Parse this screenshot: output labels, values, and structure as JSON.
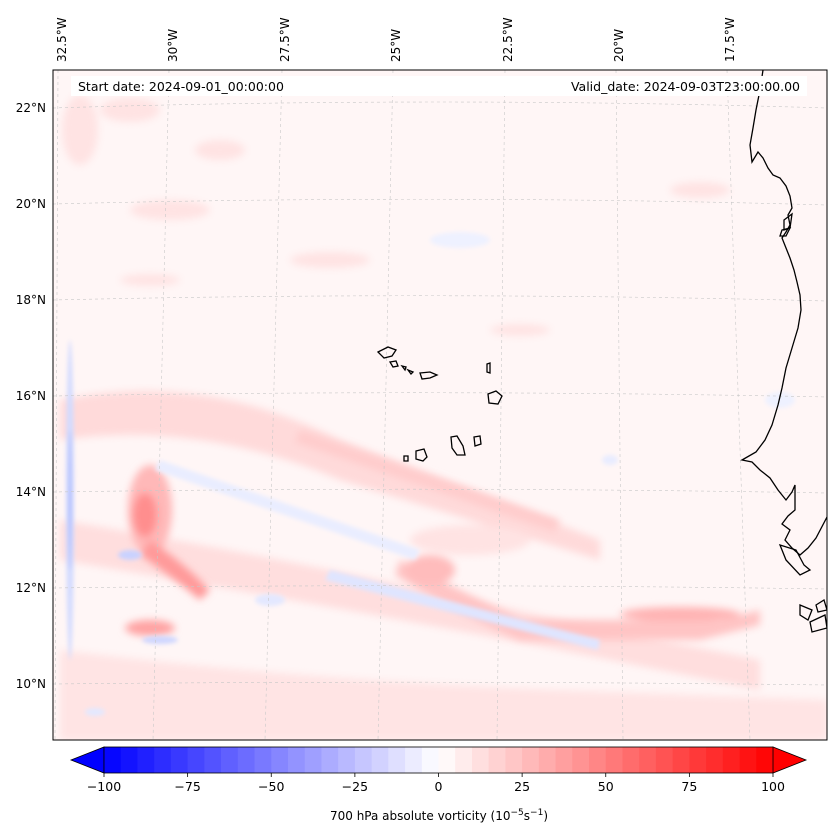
{
  "map": {
    "header": {
      "start_date": "Start date: 2024-09-01_00:00:00",
      "valid_date": "Valid_date: 2024-09-03T23:00:00.00"
    },
    "longitude_labels": [
      "32.5°W",
      "30°W",
      "27.5°W",
      "25°W",
      "22.5°W",
      "20°W",
      "17.5°W"
    ],
    "latitude_labels": [
      "22°N",
      "20°N",
      "18°N",
      "16°N",
      "14°N",
      "12°N",
      "10°N"
    ],
    "region": "Eastern tropical Atlantic with Cape Verde islands and West African coast",
    "field": "700 hPa absolute vorticity"
  },
  "colorbar": {
    "min": -100,
    "max": 100,
    "tick_values": [
      -100,
      -75,
      -50,
      -25,
      0,
      25,
      50,
      75,
      100
    ],
    "tick_labels": [
      "−100",
      "−75",
      "−50",
      "−25",
      "0",
      "25",
      "50",
      "75",
      "100"
    ],
    "label_main": "700 hPa absolute vorticity (10",
    "label_exp1": "−5",
    "label_mid": "s",
    "label_exp2": "−1",
    "label_end": ")",
    "negative_color": "#0000ff",
    "positive_color": "#ff0000",
    "extend": "both"
  }
}
